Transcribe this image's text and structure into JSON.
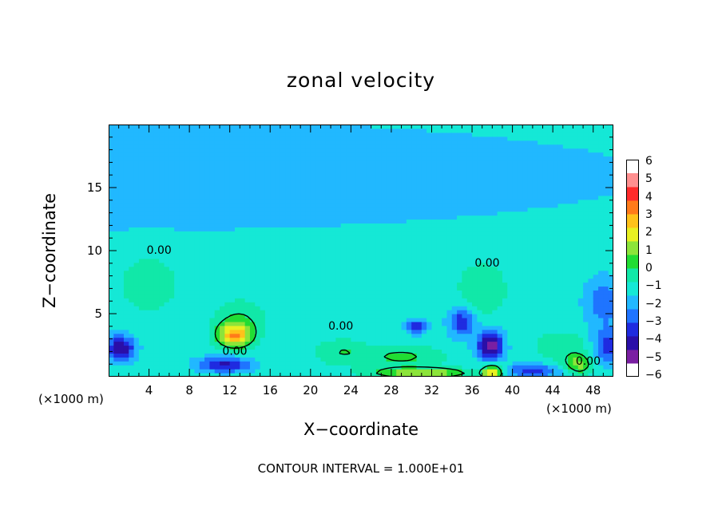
{
  "chart_data": {
    "type": "heatmap",
    "title": "zonal velocity",
    "xlabel": "X−coordinate",
    "ylabel": "Z−coordinate",
    "x_unit_label": "(×1000 m)",
    "x_ticks": [
      "4",
      "8",
      "12",
      "16",
      "20",
      "24",
      "28",
      "32",
      "36",
      "40",
      "44",
      "48"
    ],
    "x_tick_values": [
      4,
      8,
      12,
      16,
      20,
      24,
      28,
      32,
      36,
      40,
      44,
      48
    ],
    "y_ticks": [
      "5",
      "10",
      "15"
    ],
    "y_tick_values": [
      5,
      10,
      15
    ],
    "xlim": [
      0,
      50
    ],
    "ylim": [
      0,
      20
    ],
    "colorbar": {
      "ticks": [
        "6",
        "5",
        "4",
        "3",
        "2",
        "1",
        "0",
        "−1",
        "−2",
        "−3",
        "−4",
        "−5",
        "−6"
      ],
      "range": [
        -6,
        6
      ],
      "colors": [
        "#7a1fa2",
        "#2a0fa8",
        "#1f2be0",
        "#1f74ff",
        "#21b8ff",
        "#15e8d6",
        "#11e8a8",
        "#21dd33",
        "#8ce43a",
        "#e8f021",
        "#ffc21a",
        "#ff7b1a",
        "#ff2b2b",
        "#ff9090"
      ]
    },
    "background_value": -1.3,
    "features": [
      {
        "x": 0,
        "z": 16,
        "sx": 60,
        "sz": 5,
        "value": -0.9
      },
      {
        "x": 4,
        "z": 7.5,
        "sx": 2.8,
        "sz": 2.2,
        "value": 1.2
      },
      {
        "x": 12.5,
        "z": 3.3,
        "sx": 1.6,
        "sz": 0.9,
        "value": 4.3
      },
      {
        "x": 13,
        "z": 4.5,
        "sx": 2.5,
        "sz": 1.6,
        "value": 1.3
      },
      {
        "x": 37,
        "z": 7,
        "sx": 2.4,
        "sz": 2.2,
        "value": 1.2
      },
      {
        "x": 37.8,
        "z": 2.5,
        "sx": 1.3,
        "sz": 1.2,
        "value": -4.5
      },
      {
        "x": 38,
        "z": 0.4,
        "sx": 1.0,
        "sz": 0.6,
        "value": 4.5
      },
      {
        "x": 31,
        "z": 0.3,
        "sx": 4.5,
        "sz": 0.4,
        "value": 3.2
      },
      {
        "x": 29,
        "z": 1.6,
        "sx": 4,
        "sz": 0.9,
        "value": 1.5
      },
      {
        "x": 23,
        "z": 2,
        "sx": 2.5,
        "sz": 1.0,
        "value": 1.2
      },
      {
        "x": 1.2,
        "z": 2.3,
        "sx": 1.4,
        "sz": 1.0,
        "value": -3.8
      },
      {
        "x": 11.5,
        "z": 1.0,
        "sx": 2.6,
        "sz": 0.6,
        "value": -3.2
      },
      {
        "x": 35,
        "z": 4.4,
        "sx": 1.3,
        "sz": 1.2,
        "value": -2.8
      },
      {
        "x": 30.5,
        "z": 4,
        "sx": 1.0,
        "sz": 0.6,
        "value": -2.6
      },
      {
        "x": 42,
        "z": 0.5,
        "sx": 3,
        "sz": 0.5,
        "value": -2.5
      },
      {
        "x": 46.5,
        "z": 1,
        "sx": 1.4,
        "sz": 0.8,
        "value": 2.5
      },
      {
        "x": 49.5,
        "z": 2.5,
        "sx": 1.6,
        "sz": 1.4,
        "value": -2.7
      },
      {
        "x": 49,
        "z": 6,
        "sx": 1.8,
        "sz": 1.8,
        "value": -2.0
      },
      {
        "x": 45,
        "z": 2.5,
        "sx": 3,
        "sz": 1.2,
        "value": 1.0
      }
    ],
    "contour_label": "0.00",
    "contour_interval_text": "CONTOUR INTERVAL = 1.000E+01",
    "grid": false
  }
}
